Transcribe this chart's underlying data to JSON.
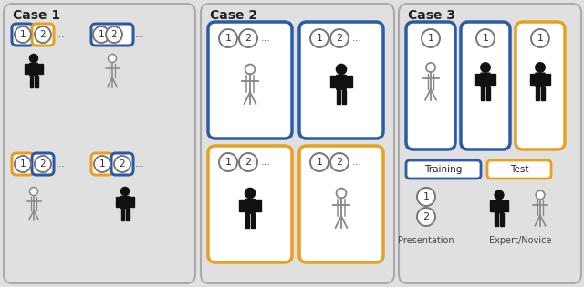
{
  "bg_color": "#e0e0e0",
  "panel_bg": "#e0e0e0",
  "blue": "#2B5BA8",
  "gold": "#E8A020",
  "gray_border": "#999999",
  "white": "#ffffff",
  "case1_title": "Case 1",
  "case2_title": "Case 2",
  "case3_title": "Case 3",
  "training_label": "Training",
  "test_label": "Test",
  "presentation_label": "Presentation",
  "expert_novice_label": "Expert/Novice"
}
